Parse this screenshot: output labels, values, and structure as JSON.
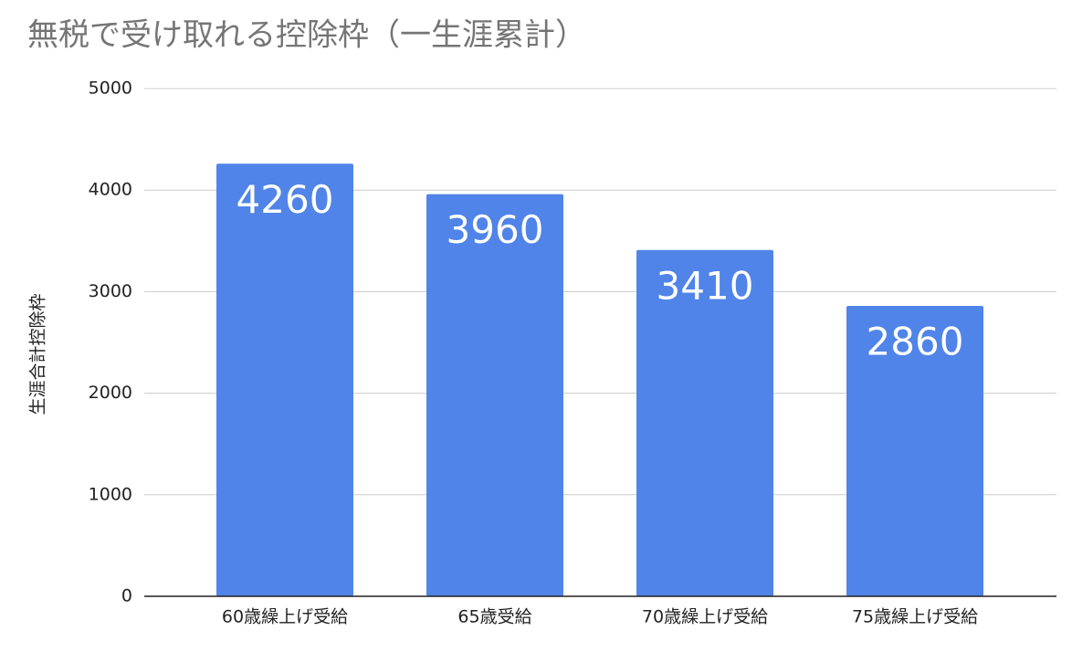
{
  "chart_data": {
    "type": "bar",
    "title": "無税で受け取れる控除枠（一生涯累計）",
    "y_label": "生涯合計控除枠",
    "categories": [
      "60歳繰上げ受給",
      "65歳受給",
      "70歳繰上げ受給",
      "75歳繰上げ受給"
    ],
    "values": [
      4260,
      3960,
      3410,
      2860
    ],
    "color": "#5084e8",
    "ylim": [
      0,
      5000
    ],
    "yticks": [
      0,
      1000,
      2000,
      3000,
      4000,
      5000
    ],
    "grid": true,
    "data_labels": true
  }
}
